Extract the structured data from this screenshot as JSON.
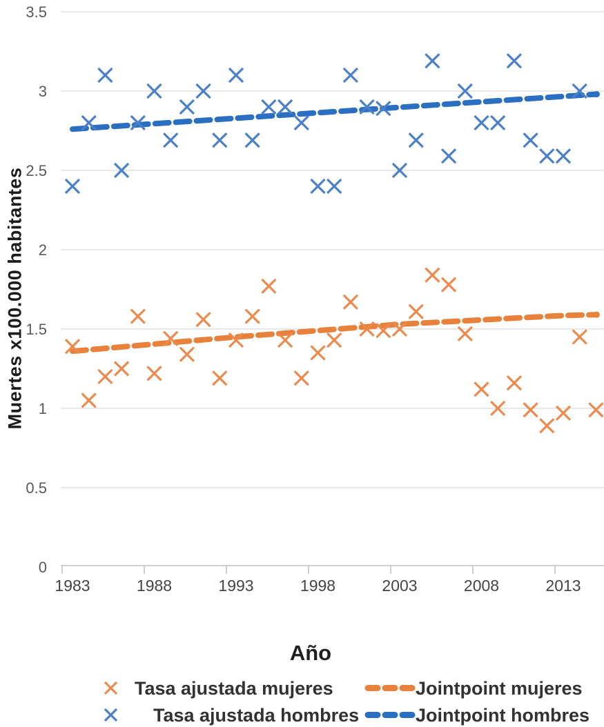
{
  "chart_data": {
    "type": "scatter",
    "title": "",
    "xlabel": "Año",
    "ylabel": "Muertes x100.000 habitantes",
    "ylim": [
      0,
      3.5
    ],
    "xlim": [
      1982.4,
      2015.6
    ],
    "grid": true,
    "legend_position": "bottom",
    "y_ticks": [
      "0",
      "0.5",
      "1",
      "1.5",
      "2",
      "2.5",
      "3",
      "3.5"
    ],
    "x_ticks": [
      "1983",
      "1988",
      "1993",
      "1998",
      "2003",
      "2008",
      "2013"
    ],
    "series": [
      {
        "name": "Tasa ajustada mujeres",
        "marker": "x",
        "color": "#EC8A4E",
        "years": [
          1983,
          1984,
          1985,
          1986,
          1987,
          1988,
          1989,
          1990,
          1991,
          1992,
          1993,
          1994,
          1995,
          1996,
          1997,
          1998,
          1999,
          2000,
          2001,
          2002,
          2003,
          2004,
          2005,
          2006,
          2007,
          2008,
          2009,
          2010,
          2011,
          2012,
          2013,
          2014,
          2015
        ],
        "values": [
          1.39,
          1.05,
          1.2,
          1.25,
          1.58,
          1.22,
          1.44,
          1.34,
          1.56,
          1.19,
          1.43,
          1.58,
          1.77,
          1.43,
          1.19,
          1.35,
          1.43,
          1.67,
          1.5,
          1.49,
          1.5,
          1.61,
          1.84,
          1.78,
          1.47,
          1.12,
          1.0,
          1.16,
          0.99,
          0.89,
          0.97,
          1.45,
          0.99
        ]
      },
      {
        "name": "Tasa ajustada hombres",
        "marker": "x",
        "color": "#4A80C9",
        "years": [
          1983,
          1984,
          1985,
          1986,
          1987,
          1988,
          1989,
          1990,
          1991,
          1992,
          1993,
          1994,
          1995,
          1996,
          1997,
          1998,
          1999,
          2000,
          2001,
          2002,
          2003,
          2004,
          2005,
          2006,
          2007,
          2008,
          2009,
          2010,
          2011,
          2012,
          2013,
          2014
        ],
        "values": [
          2.4,
          2.8,
          3.1,
          2.5,
          2.8,
          3.0,
          2.69,
          2.9,
          3.0,
          2.69,
          3.1,
          2.69,
          2.9,
          2.9,
          2.8,
          2.4,
          2.4,
          3.1,
          2.9,
          2.89,
          2.5,
          2.69,
          3.19,
          2.59,
          3.0,
          2.8,
          2.8,
          3.19,
          2.69,
          2.59,
          2.59,
          3.0
        ]
      }
    ],
    "trendlines": [
      {
        "name": "Jointpoint mujeres",
        "color": "#E8813C",
        "points": [
          [
            1983,
            1.36
          ],
          [
            1993,
            1.45
          ],
          [
            2003,
            1.53
          ],
          [
            2013,
            1.585
          ],
          [
            2015,
            1.59
          ]
        ]
      },
      {
        "name": "Jointpoint hombres",
        "color": "#2B6FC3",
        "points": [
          [
            1983,
            2.76
          ],
          [
            2015,
            2.98
          ]
        ]
      }
    ]
  },
  "colors": {
    "background": "#FFFFFF",
    "gridline": "#D9D9D9",
    "axis_line": "#BFBFBF",
    "tick_label": "#595959",
    "title_text": "#1C1C1C",
    "legend_text": "#323232"
  }
}
